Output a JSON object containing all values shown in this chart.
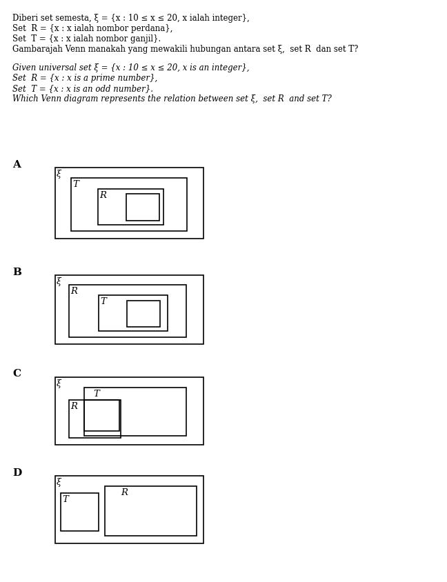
{
  "bg_color": "#ffffff",
  "text_color": "#000000",
  "title_lines_normal": [
    "Diberi set semesta, ξ = {x : 10 ≤ x ≤ 20, x ialah integer},",
    "Set  R = {x : x ialah nombor perdana},",
    "Set  T = {x : x ialah nombor ganjil}.",
    "Gambarajah Venn manakah yang mewakili hubungan antara set ξ,  set R  dan set T?"
  ],
  "title_lines_italic": [
    "Given universal set ξ = {x : 10 ≤ x ≤ 20, x is an integer},",
    "Set  R = {x : x is a prime number},",
    "Set  T = {x : x is an odd number}.",
    "Which Venn diagram represents the relation between set ξ,  set R  and set T?"
  ],
  "option_labels": [
    "A",
    "B",
    "C",
    "D"
  ]
}
